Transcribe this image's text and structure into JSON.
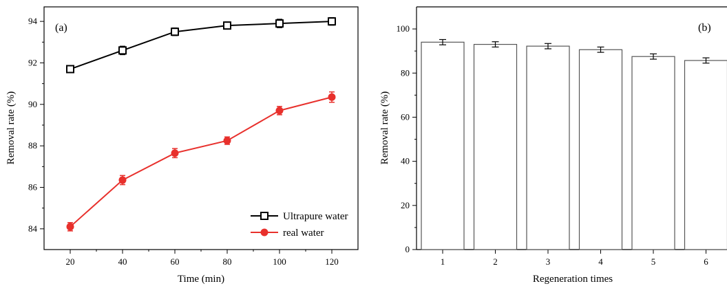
{
  "chart_data": [
    {
      "type": "line",
      "panel_label": "(a)",
      "xlabel": "Time (min)",
      "ylabel": "Removal rate (%)",
      "x": [
        20,
        40,
        60,
        80,
        100,
        120
      ],
      "xticks": [
        "20",
        "40",
        "60",
        "80",
        "100",
        "120"
      ],
      "xlim": [
        10,
        130
      ],
      "ylim": [
        83,
        94.7
      ],
      "yticks": [
        "84",
        "86",
        "88",
        "90",
        "92",
        "94"
      ],
      "series": [
        {
          "name": "Ultrapure water",
          "color": "#000000",
          "marker": "open-square",
          "values": [
            91.7,
            92.6,
            93.5,
            93.8,
            93.9,
            94.0
          ],
          "errors": [
            0.15,
            0.2,
            0.18,
            0.17,
            0.2,
            0.18
          ]
        },
        {
          "name": "real water",
          "color": "#e8302c",
          "marker": "filled-circle",
          "values": [
            84.1,
            86.35,
            87.65,
            88.25,
            89.7,
            90.35
          ],
          "errors": [
            0.2,
            0.22,
            0.22,
            0.18,
            0.2,
            0.25
          ]
        }
      ],
      "legend_position": "bottom-right",
      "grid": false
    },
    {
      "type": "bar",
      "panel_label": "(b)",
      "xlabel": "Regeneration times",
      "ylabel": "Removal rate (%)",
      "categories": [
        "1",
        "2",
        "3",
        "4",
        "5",
        "6"
      ],
      "values": [
        94.0,
        93.0,
        92.2,
        90.6,
        87.5,
        85.7
      ],
      "errors": [
        1.2,
        1.2,
        1.2,
        1.2,
        1.2,
        1.2
      ],
      "ylim": [
        0,
        110
      ],
      "yticks": [
        "0",
        "20",
        "40",
        "60",
        "80",
        "100"
      ],
      "grid": false
    }
  ]
}
